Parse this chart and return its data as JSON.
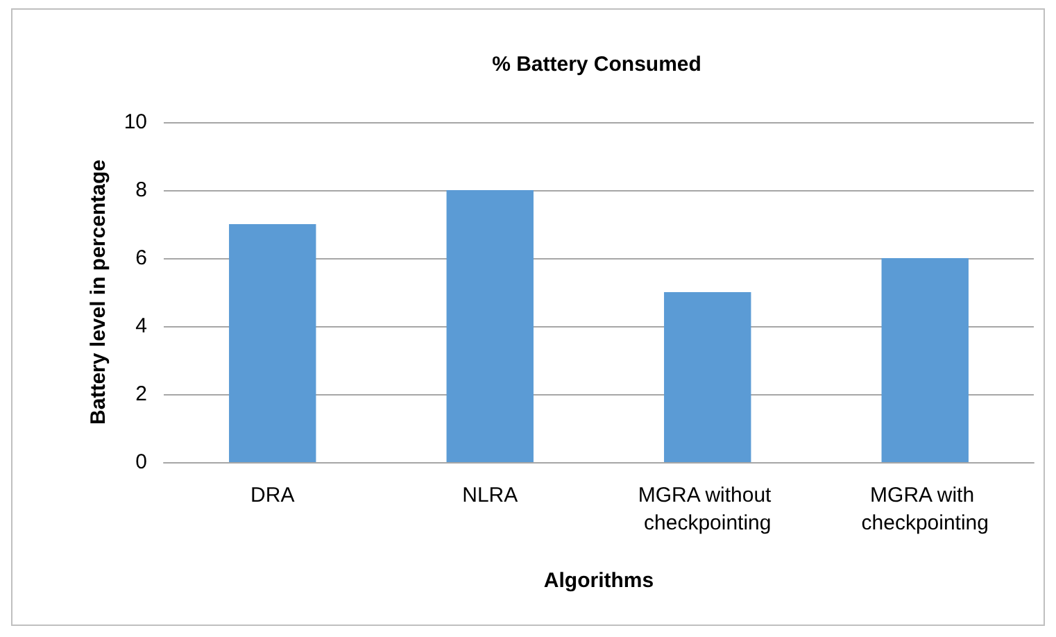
{
  "chart_data": {
    "type": "bar",
    "title": "% Battery Consumed",
    "xlabel": "Algorithms",
    "ylabel": "Battery level in percentage",
    "categories": [
      "DRA",
      "NLRA",
      "MGRA without checkpointing",
      "MGRA with checkpointing"
    ],
    "values": [
      7,
      8,
      5,
      6
    ],
    "color": "#5b9bd5",
    "ylim": [
      0,
      10
    ],
    "yticks": [
      0,
      2,
      4,
      6,
      8,
      10
    ],
    "grid": "y"
  }
}
